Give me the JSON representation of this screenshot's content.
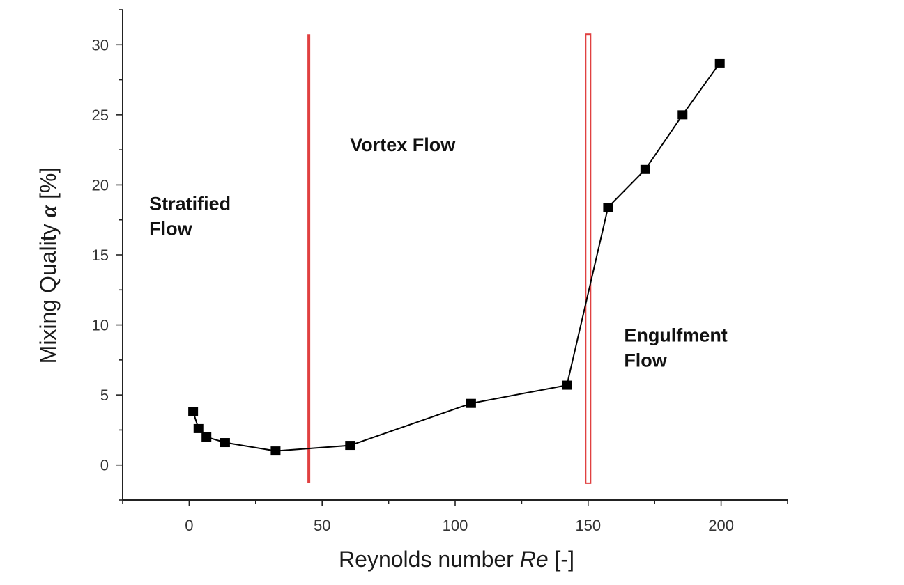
{
  "chart_data": {
    "type": "line",
    "xlabel": "Reynolds number ",
    "xlabel_italic": "Re",
    "xlabel_suffix": " [-]",
    "ylabel": "Mixing Quality ",
    "ylabel_symbol": "α",
    "ylabel_suffix": " [%]",
    "xlim": [
      -25,
      225
    ],
    "ylim": [
      -2.5,
      32.5
    ],
    "xticks": [
      0,
      50,
      100,
      150,
      200
    ],
    "yticks": [
      0,
      5,
      10,
      15,
      20,
      25,
      30
    ],
    "grid": false,
    "series": [
      {
        "marker": "square",
        "color": "#000000",
        "x": [
          1.5,
          3.5,
          6.5,
          13.5,
          32.5,
          60.5,
          106,
          142,
          157.5,
          171.5,
          185.5,
          199.5
        ],
        "y": [
          3.8,
          2.6,
          2.0,
          1.6,
          1.0,
          1.4,
          4.4,
          5.7,
          18.4,
          21.1,
          25.0,
          28.7
        ]
      }
    ],
    "vertical_lines": [
      {
        "x": 45,
        "color": "#e04040",
        "style": "solid"
      },
      {
        "x": 150,
        "color": "#e04040",
        "style": "double"
      }
    ],
    "annotations": [
      {
        "lines": [
          "Stratified",
          "Flow"
        ],
        "x": -15,
        "y": 18.2
      },
      {
        "lines": [
          "Vortex Flow"
        ],
        "x": 60.5,
        "y": 22.4
      },
      {
        "lines": [
          "Engulfment",
          "Flow"
        ],
        "x": 163.5,
        "y": 8.8
      }
    ]
  }
}
